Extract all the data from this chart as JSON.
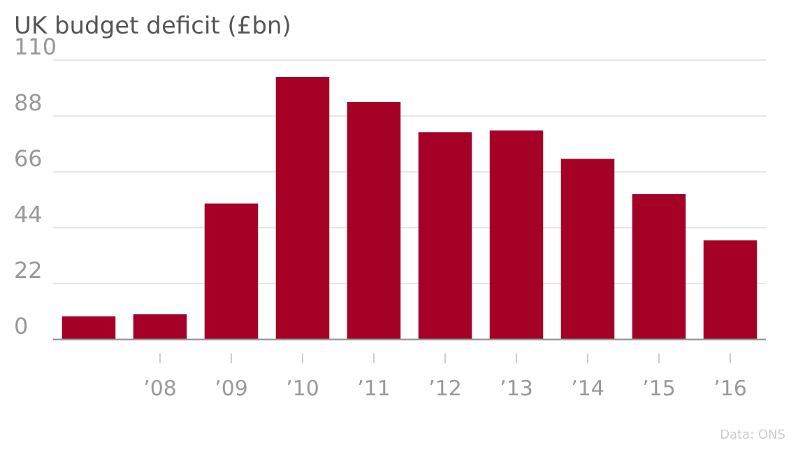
{
  "chart_data": {
    "type": "bar",
    "title": "UK budget deficit (£bn)",
    "categories": [
      null,
      "’08",
      "’09",
      "’10",
      "’11",
      "’12",
      "’13",
      "’14",
      "’15",
      "’16"
    ],
    "values": [
      9.1,
      9.9,
      53.5,
      103.4,
      93.5,
      81.6,
      82.3,
      71.1,
      57.2,
      39.0
    ],
    "color": "#a50026",
    "ylim": [
      0,
      110
    ],
    "yticks": [
      0,
      22,
      44,
      66,
      88,
      110
    ],
    "grid": "y",
    "annotations": [
      "Data: ONS"
    ]
  }
}
